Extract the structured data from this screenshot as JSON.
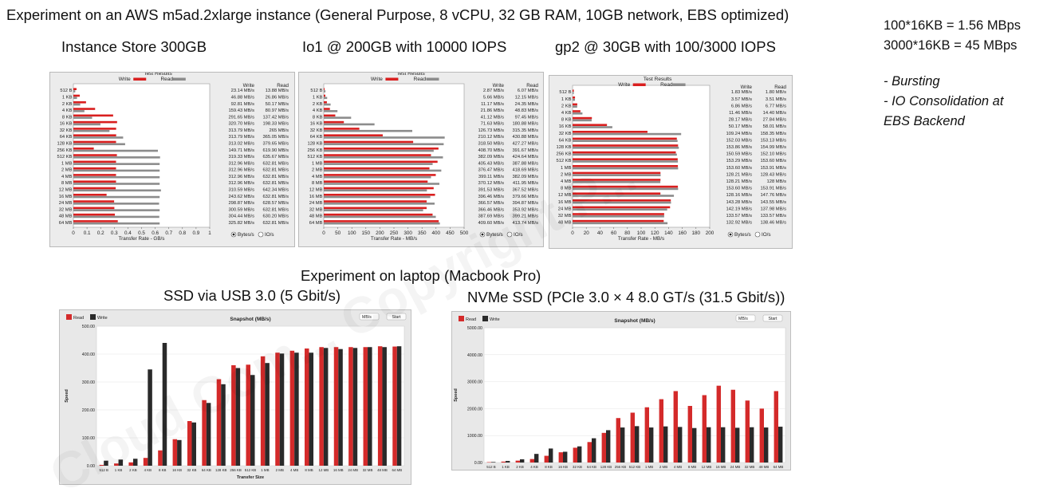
{
  "header": {
    "main_title": "Experiment on an AWS m5ad.2xlarge instance (General Purpose, 8 vCPU, 32 GB RAM, 10GB network, EBS optimized)",
    "laptop_title": "Experiment on laptop (Macbook Pro)"
  },
  "notes": {
    "line1": "100*16KB = 1.56 MBps",
    "line2": "3000*16KB = 45 MBps",
    "bullet1": "- Bursting",
    "bullet2": "- IO Consolidation at",
    "bullet3": "EBS Backend"
  },
  "watermark": "Cloud Com... Copyright P...",
  "colors": {
    "write": "#d91f1f",
    "read": "#8c8c8c",
    "mac_read": "#d42a2a",
    "mac_write": "#2a2a2a"
  },
  "chart_data": [
    {
      "type": "bar",
      "subtitle": "Instance Store 300GB",
      "title": "Test Results",
      "xlabel": "Transfer Rate - GB/s",
      "xlim": [
        0,
        1
      ],
      "xticks": [
        "0",
        "0.1",
        "0.2",
        "0.3",
        "0.4",
        "0.5",
        "0.6",
        "0.7",
        "0.8",
        "0.9",
        "1"
      ],
      "legend": [
        "Write",
        "Read"
      ],
      "col_headers": [
        "Write",
        "Read"
      ],
      "radio": [
        "Bytes/s",
        "IO/s"
      ],
      "categories": [
        "512 B",
        "1 KB",
        "2 KB",
        "4 KB",
        "8 KB",
        "16 KB",
        "32 KB",
        "64 KB",
        "128 KB",
        "256 KB",
        "512 KB",
        "1 MB",
        "2 MB",
        "4 MB",
        "8 MB",
        "12 MB",
        "16 MB",
        "24 MB",
        "32 MB",
        "48 MB",
        "64 MB"
      ],
      "series": [
        {
          "name": "Write",
          "values": [
            0.02314,
            0.04688,
            0.09281,
            0.15943,
            0.29165,
            0.3207,
            0.31379,
            0.31379,
            0.31302,
            0.14971,
            0.31933,
            0.31296,
            0.31296,
            0.31296,
            0.31296,
            0.31059,
            0.24362,
            0.29887,
            0.30059,
            0.30444,
            0.32582
          ]
        },
        {
          "name": "Read",
          "values": [
            0.01388,
            0.02686,
            0.05017,
            0.08097,
            0.13742,
            0.19833,
            0.265,
            0.36505,
            0.37965,
            0.6199,
            0.63567,
            0.63281,
            0.63281,
            0.63281,
            0.63281,
            0.64234,
            0.63281,
            0.62857,
            0.63281,
            0.6302,
            0.63281
          ]
        }
      ],
      "write_labels": [
        "23.14 MB/s",
        "46.88 MB/s",
        "92.81 MB/s",
        "159.43 MB/s",
        "291.65 MB/s",
        "320.70 MB/s",
        "313.79 MB/s",
        "313.79 MB/s",
        "313.02 MB/s",
        "149.71 MB/s",
        "319.33 MB/s",
        "312.96 MB/s",
        "312.96 MB/s",
        "312.96 MB/s",
        "312.96 MB/s",
        "310.59 MB/s",
        "243.62 MB/s",
        "298.87 MB/s",
        "300.59 MB/s",
        "304.44 MB/s",
        "325.82 MB/s"
      ],
      "read_labels": [
        "13.88 MB/s",
        "26.86 MB/s",
        "50.17 MB/s",
        "80.97 MB/s",
        "137.42 MB/s",
        "198.33 MB/s",
        "265 MB/s",
        "365.05 MB/s",
        "379.65 MB/s",
        "619.90 MB/s",
        "635.67 MB/s",
        "632.81 MB/s",
        "632.81 MB/s",
        "632.81 MB/s",
        "632.81 MB/s",
        "642.34 MB/s",
        "632.81 MB/s",
        "628.57 MB/s",
        "632.81 MB/s",
        "630.20 MB/s",
        "632.81 MB/s"
      ]
    },
    {
      "type": "bar",
      "subtitle": "Io1 @ 200GB with 10000 IOPS",
      "title": "Test Results",
      "xlabel": "Transfer Rate - MB/s",
      "xlim": [
        0,
        500
      ],
      "xticks": [
        "0",
        "50",
        "100",
        "150",
        "200",
        "250",
        "300",
        "350",
        "400",
        "450",
        "500"
      ],
      "legend": [
        "Write",
        "Read"
      ],
      "col_headers": [
        "Write",
        "Read"
      ],
      "radio": [
        "Bytes/s",
        "IO/s"
      ],
      "categories": [
        "512 B",
        "1 KB",
        "2 KB",
        "4 KB",
        "8 KB",
        "16 KB",
        "32 KB",
        "64 KB",
        "128 KB",
        "256 KB",
        "512 KB",
        "1 MB",
        "2 MB",
        "4 MB",
        "8 MB",
        "12 MB",
        "16 MB",
        "24 MB",
        "32 MB",
        "48 MB",
        "64 MB"
      ],
      "series": [
        {
          "name": "Write",
          "values": [
            2.87,
            5.66,
            11.17,
            21.86,
            41.12,
            71.63,
            126.73,
            210.12,
            318.5,
            408.7,
            382.09,
            405.43,
            376.47,
            399.11,
            370.12,
            391.53,
            396.46,
            366.57,
            366.46,
            387.69,
            409.6
          ]
        },
        {
          "name": "Read",
          "values": [
            6.07,
            12.15,
            24.35,
            48.83,
            97.45,
            180.88,
            315.35,
            430.88,
            427.27,
            391.67,
            424.64,
            387.88,
            418.69,
            382.09,
            411.95,
            367.52,
            379.66,
            394.87,
            353.92,
            399.21,
            413.74
          ]
        }
      ],
      "write_labels": [
        "2.87 MB/s",
        "5.66 MB/s",
        "11.17 MB/s",
        "21.86 MB/s",
        "41.12 MB/s",
        "71.63 MB/s",
        "126.73 MB/s",
        "210.12 MB/s",
        "318.50 MB/s",
        "408.70 MB/s",
        "382.09 MB/s",
        "405.43 MB/s",
        "376.47 MB/s",
        "399.11 MB/s",
        "370.12 MB/s",
        "391.53 MB/s",
        "396.46 MB/s",
        "366.57 MB/s",
        "366.46 MB/s",
        "387.69 MB/s",
        "409.60 MB/s"
      ],
      "read_labels": [
        "6.07 MB/s",
        "12.15 MB/s",
        "24.35 MB/s",
        "48.83 MB/s",
        "97.45 MB/s",
        "180.88 MB/s",
        "315.35 MB/s",
        "430.88 MB/s",
        "427.27 MB/s",
        "391.67 MB/s",
        "424.64 MB/s",
        "387.88 MB/s",
        "418.69 MB/s",
        "382.09 MB/s",
        "411.95 MB/s",
        "367.52 MB/s",
        "379.66 MB/s",
        "394.87 MB/s",
        "353.92 MB/s",
        "399.21 MB/s",
        "413.74 MB/s"
      ]
    },
    {
      "type": "bar",
      "subtitle": "gp2 @ 30GB with 100/3000 IOPS",
      "title": "Test Results",
      "xlabel": "Transfer Rate - MB/s",
      "xlim": [
        0,
        200
      ],
      "xticks": [
        "0",
        "20",
        "40",
        "60",
        "80",
        "100",
        "120",
        "140",
        "160",
        "180",
        "200"
      ],
      "legend": [
        "Write",
        "Read"
      ],
      "col_headers": [
        "Write",
        "Read"
      ],
      "radio": [
        "Bytes/s",
        "IO/s"
      ],
      "categories": [
        "512 B",
        "1 KB",
        "2 KB",
        "4 KB",
        "8 KB",
        "16 KB",
        "32 KB",
        "64 KB",
        "128 KB",
        "256 KB",
        "512 KB",
        "1 MB",
        "2 MB",
        "4 MB",
        "8 MB",
        "12 MB",
        "16 MB",
        "24 MB",
        "32 MB",
        "48 MB"
      ],
      "series": [
        {
          "name": "Write",
          "values": [
            1.83,
            3.57,
            6.86,
            11.46,
            28.17,
            50.17,
            109.24,
            152.03,
            153.86,
            150.59,
            153.29,
            153.6,
            128.21,
            128.21,
            153.6,
            128.16,
            143.28,
            142.19,
            133.57,
            132.92
          ]
        },
        {
          "name": "Read",
          "values": [
            1.8,
            3.51,
            6.77,
            14.4,
            27.84,
            58.01,
            158.35,
            153.13,
            154.99,
            152.1,
            153.6,
            153.91,
            128.43,
            128,
            153.91,
            147.76,
            143.55,
            137.98,
            133.57,
            138.46
          ]
        }
      ],
      "write_labels": [
        "1.83 MB/s",
        "3.57 MB/s",
        "6.86 MB/s",
        "11.46 MB/s",
        "28.17 MB/s",
        "50.17 MB/s",
        "109.24 MB/s",
        "152.03 MB/s",
        "153.86 MB/s",
        "150.59 MB/s",
        "153.29 MB/s",
        "153.60 MB/s",
        "128.21 MB/s",
        "128.21 MB/s",
        "153.60 MB/s",
        "128.16 MB/s",
        "143.28 MB/s",
        "142.19 MB/s",
        "133.57 MB/s",
        "132.92 MB/s"
      ],
      "read_labels": [
        "1.80 MB/s",
        "3.51 MB/s",
        "6.77 MB/s",
        "14.40 MB/s",
        "27.84 MB/s",
        "58.01 MB/s",
        "158.35 MB/s",
        "153.13 MB/s",
        "154.99 MB/s",
        "152.10 MB/s",
        "153.60 MB/s",
        "153.91 MB/s",
        "128.43 MB/s",
        "128 MB/s",
        "153.91 MB/s",
        "147.76 MB/s",
        "143.55 MB/s",
        "137.98 MB/s",
        "133.57 MB/s",
        "138.46 MB/s"
      ]
    },
    {
      "type": "bar",
      "subtitle": "SSD via USB 3.0 (5 Gbit/s)",
      "title": "Snapshot (MB/s)",
      "xlabel": "Transfer Size",
      "ylabel": "Speed",
      "ylim": [
        0,
        500
      ],
      "yticks": [
        "0.00",
        "100.00",
        "200.00",
        "300.00",
        "400.00",
        "500.00"
      ],
      "legend": [
        "Read",
        "Write"
      ],
      "unit_select": "MB/s",
      "start_label": "Start",
      "categories": [
        "512 B",
        "1 KB",
        "2 KB",
        "4 KB",
        "8 KB",
        "16 KB",
        "32 KB",
        "64 KB",
        "128 KB",
        "256 KB",
        "512 KB",
        "1 MB",
        "2 MB",
        "4 MB",
        "8 MB",
        "12 MB",
        "16 MB",
        "24 MB",
        "32 MB",
        "48 MB",
        "64 MB"
      ],
      "series": [
        {
          "name": "Read",
          "values": [
            3,
            8,
            12,
            28,
            55,
            95,
            160,
            235,
            310,
            360,
            362,
            392,
            405,
            412,
            420,
            425,
            425,
            425,
            425,
            428,
            427
          ]
        },
        {
          "name": "Write",
          "values": [
            18,
            22,
            25,
            345,
            440,
            92,
            155,
            225,
            292,
            350,
            325,
            368,
            402,
            405,
            405,
            422,
            418,
            422,
            425,
            425,
            428
          ]
        }
      ]
    },
    {
      "type": "bar",
      "subtitle": "NVMe SSD (PCIe 3.0 × 4 8.0 GT/s (31.5 Gbit/s))",
      "title": "Snapshot (MB/s)",
      "ylabel": "Speed",
      "ylim": [
        0,
        5000
      ],
      "yticks": [
        "0.00",
        "1000.00",
        "2000.00",
        "3000.00",
        "4000.00",
        "5000.00"
      ],
      "legend": [
        "Read",
        "Write"
      ],
      "unit_select": "MB/s",
      "start_label": "Start",
      "categories": [
        "512 B",
        "1 KB",
        "2 KB",
        "4 KB",
        "8 KB",
        "16 KB",
        "32 KB",
        "64 KB",
        "128 KB",
        "256 KB",
        "512 KB",
        "1 MB",
        "2 MB",
        "4 MB",
        "8 MB",
        "12 MB",
        "16 MB",
        "24 MB",
        "32 MB",
        "48 MB",
        "64 MB"
      ],
      "series": [
        {
          "name": "Read",
          "values": [
            15,
            35,
            70,
            130,
            250,
            380,
            550,
            760,
            1100,
            1650,
            1850,
            2050,
            2350,
            2650,
            2100,
            2500,
            2850,
            2700,
            2300,
            2000,
            2650
          ]
        },
        {
          "name": "Write",
          "values": [
            20,
            60,
            120,
            320,
            520,
            400,
            600,
            900,
            1200,
            1300,
            1350,
            1300,
            1340,
            1320,
            1280,
            1310,
            1310,
            1290,
            1310,
            1300,
            1330
          ]
        }
      ]
    }
  ]
}
